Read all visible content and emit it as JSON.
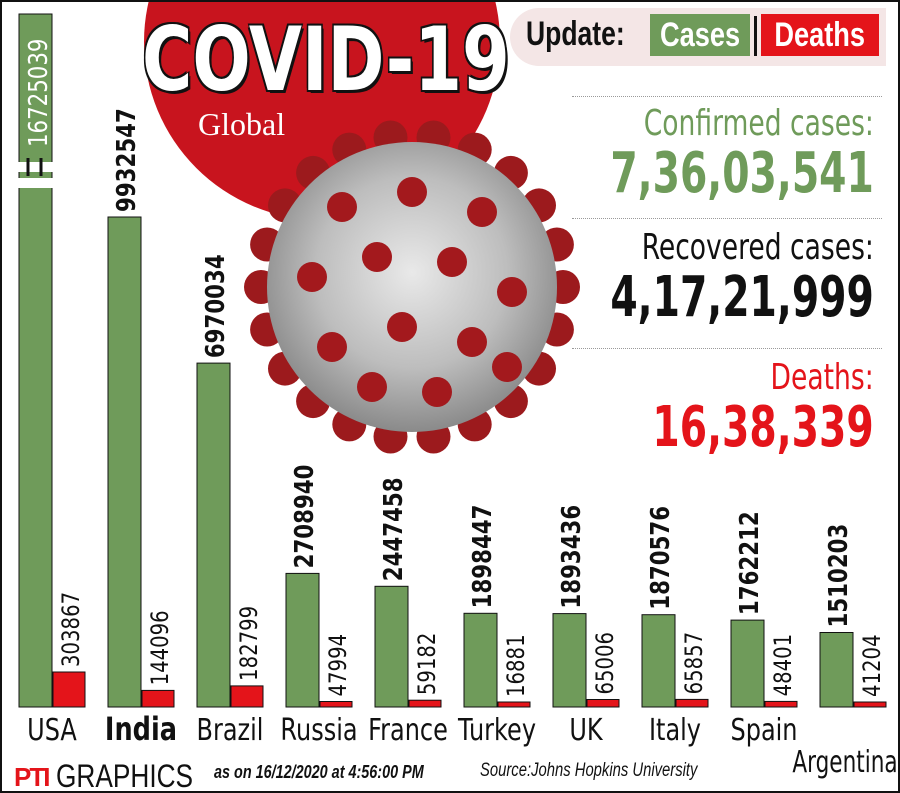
{
  "header": {
    "title": "COVID-19",
    "subtitle": "Global",
    "update_label": "Update:",
    "cases_label": "Cases",
    "deaths_label": "Deaths"
  },
  "stats": {
    "confirmed_label": "Confirmed cases:",
    "confirmed_value": "7,36,03,541",
    "recovered_label": "Recovered cases:",
    "recovered_value": "4,17,21,999",
    "deaths_label": "Deaths:",
    "deaths_value": "16,38,339"
  },
  "footer": {
    "logo": "PTI",
    "graphics": "GRAPHICS",
    "as_on": "as on 16/12/2020 at 4:56:00 PM",
    "source": "Source:Johns Hopkins University"
  },
  "colors": {
    "cases": "#6f9b5a",
    "deaths": "#e4141a",
    "title_red": "#c8141e",
    "confirmed_text": "#6f9b5a",
    "recovered_text": "#111111",
    "deaths_text": "#e4141a"
  },
  "chart_data": {
    "type": "bar",
    "title": "",
    "xlabel": "",
    "ylabel": "",
    "categories": [
      "USA",
      "India",
      "Brazil",
      "Russia",
      "France",
      "Turkey",
      "UK",
      "Italy",
      "Spain",
      "Argentina"
    ],
    "series": [
      {
        "name": "Cases",
        "values": [
          16725039,
          9932547,
          6970034,
          2708940,
          2447458,
          1898447,
          1893436,
          1870576,
          1762212,
          1510203
        ]
      },
      {
        "name": "Deaths",
        "values": [
          303867,
          144096,
          182799,
          47994,
          59182,
          16881,
          65006,
          65857,
          48401,
          41204
        ]
      }
    ],
    "labels": {
      "cases": [
        "16725039",
        "9932547",
        "6970034",
        "2708940",
        "2447458",
        "1898447",
        "1893436",
        "1870576",
        "1762212",
        "1510203"
      ],
      "deaths": [
        "303867",
        "144096",
        "182799",
        "47994",
        "59182",
        "16881",
        "65006",
        "65857",
        "48401",
        "41204"
      ]
    },
    "axis_break": "USA",
    "grid": false,
    "legend": "none"
  }
}
